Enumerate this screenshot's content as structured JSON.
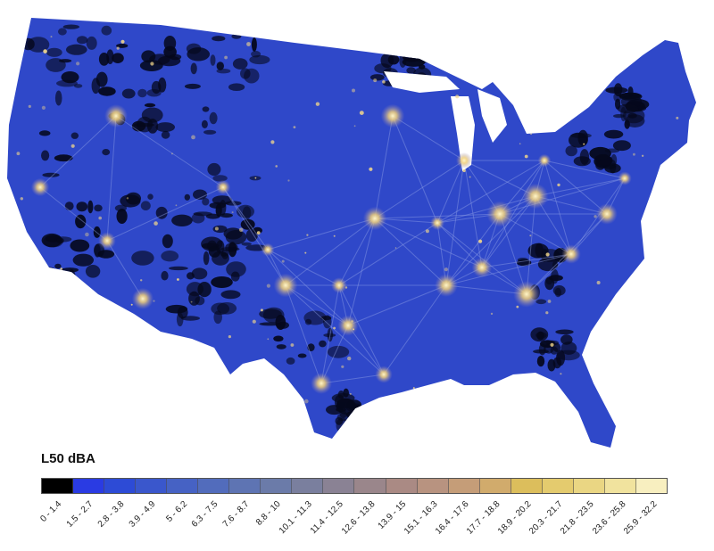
{
  "legend": {
    "title": "L50 dBA",
    "classes": [
      {
        "label": "0 - 1.4",
        "color": "#000000"
      },
      {
        "label": "1.5 - 2.7",
        "color": "#2a3be3"
      },
      {
        "label": "2.8 - 3.8",
        "color": "#2d4bd6"
      },
      {
        "label": "3.9 - 4.9",
        "color": "#3a57cc"
      },
      {
        "label": "5 - 6.2",
        "color": "#4662c4"
      },
      {
        "label": "6.3 - 7.5",
        "color": "#526cbc"
      },
      {
        "label": "7.6 - 8.7",
        "color": "#5e74b3"
      },
      {
        "label": "8.8 - 10",
        "color": "#6b7ba9"
      },
      {
        "label": "10.1 - 11.3",
        "color": "#7a7f9e"
      },
      {
        "label": "11.4 - 12.5",
        "color": "#8a8294"
      },
      {
        "label": "12.6 - 13.8",
        "color": "#9a868b"
      },
      {
        "label": "13.9 - 15",
        "color": "#aa8a84"
      },
      {
        "label": "15.1 - 16.3",
        "color": "#b89380"
      },
      {
        "label": "16.4 - 17.6",
        "color": "#c59d78"
      },
      {
        "label": "17.7 - 18.8",
        "color": "#d1ab6c"
      },
      {
        "label": "18.9 - 20.2",
        "color": "#dcbe5c"
      },
      {
        "label": "20.3 - 21.7",
        "color": "#e4cb6e"
      },
      {
        "label": "21.8 - 23.5",
        "color": "#ead683"
      },
      {
        "label": "23.6 - 25.8",
        "color": "#f1e39e"
      },
      {
        "label": "25.9 - 32.2",
        "color": "#f8efc0"
      }
    ]
  },
  "map": {
    "base_color": "#2f48c9",
    "quiet_color": "#05081c",
    "loud_color": "#f5d98a"
  }
}
